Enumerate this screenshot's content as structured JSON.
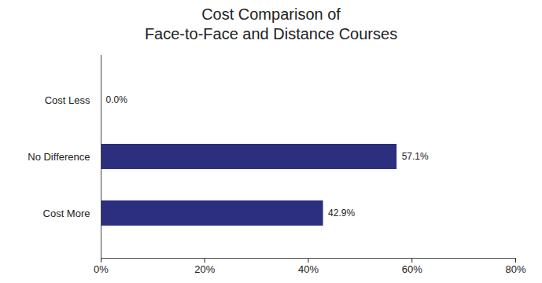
{
  "chart_data": {
    "type": "bar",
    "title": "Cost Comparison of\nFace-to-Face and Distance Courses",
    "orientation": "horizontal",
    "categories": [
      "Cost Less",
      "No Difference",
      "Cost More"
    ],
    "values": [
      0.0,
      57.1,
      42.9
    ],
    "value_labels": [
      "0.0%",
      "57.1%",
      "42.9%"
    ],
    "data_labels": true,
    "color": "#2b2f7e",
    "xlim": [
      0,
      80
    ],
    "xticks": [
      {
        "value": 0,
        "label": "0%"
      },
      {
        "value": 20,
        "label": "20%"
      },
      {
        "value": 40,
        "label": "40%"
      },
      {
        "value": 60,
        "label": "60%"
      },
      {
        "value": 80,
        "label": "80%"
      }
    ],
    "grid": false
  }
}
